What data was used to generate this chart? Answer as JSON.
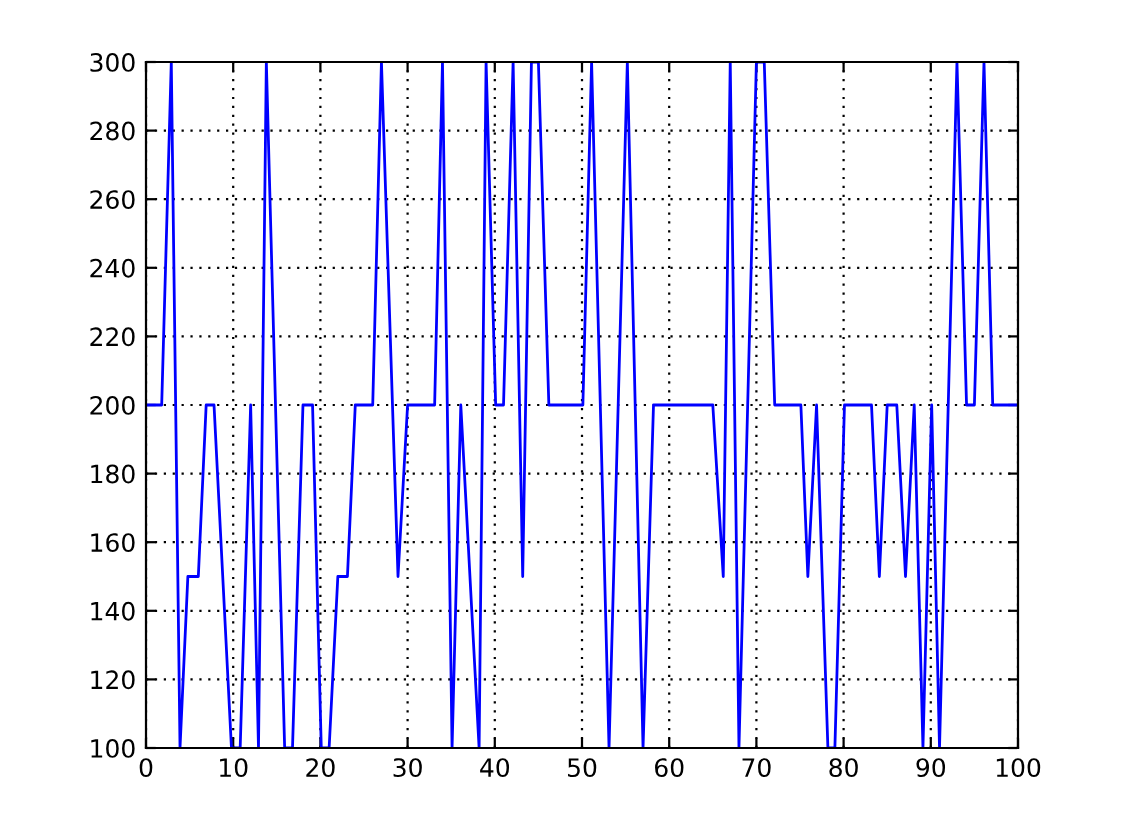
{
  "chart_data": {
    "type": "line",
    "x": [
      0,
      1.8,
      2.9,
      3.9,
      4.8,
      6,
      6.9,
      7.8,
      9.8,
      10.8,
      12,
      12.9,
      13.8,
      15.9,
      16.8,
      18,
      19.1,
      20.1,
      21,
      22,
      23.1,
      24,
      26,
      27,
      28.9,
      30,
      33.1,
      34,
      35.1,
      36.1,
      38.2,
      39,
      40.1,
      41,
      42.1,
      43.2,
      44.2,
      45,
      46.2,
      50.1,
      51.1,
      53.1,
      55.2,
      57,
      58.2,
      65,
      66.2,
      67,
      68,
      70,
      70.9,
      72.1,
      75.1,
      75.9,
      76.9,
      78.2,
      79,
      80.1,
      83.2,
      84.1,
      85,
      86.1,
      87.1,
      88.1,
      89.1,
      90.1,
      91,
      93,
      94.1,
      95,
      96.1,
      97.1,
      100
    ],
    "series": [
      {
        "color": "#0000ff",
        "values": [
          200,
          200,
          300,
          100,
          150,
          150,
          200,
          200,
          100,
          100,
          200,
          100,
          300,
          100,
          100,
          200,
          200,
          100,
          100,
          150,
          150,
          200,
          200,
          300,
          150,
          200,
          200,
          300,
          100,
          200,
          100,
          300,
          200,
          200,
          300,
          150,
          300,
          300,
          200,
          200,
          300,
          100,
          300,
          100,
          200,
          200,
          150,
          300,
          100,
          300,
          300,
          200,
          200,
          150,
          200,
          100,
          100,
          200,
          200,
          150,
          200,
          200,
          150,
          200,
          100,
          200,
          100,
          300,
          200,
          200,
          300,
          200,
          200
        ]
      }
    ],
    "xlim": [
      0,
      100
    ],
    "ylim": [
      100,
      300
    ],
    "xticks": [
      0,
      10,
      20,
      30,
      40,
      50,
      60,
      70,
      80,
      90,
      100
    ],
    "yticks": [
      100,
      120,
      140,
      160,
      180,
      200,
      220,
      240,
      260,
      280,
      300
    ],
    "grid": true,
    "legend": false,
    "marker": "none",
    "line_style": "solid"
  }
}
